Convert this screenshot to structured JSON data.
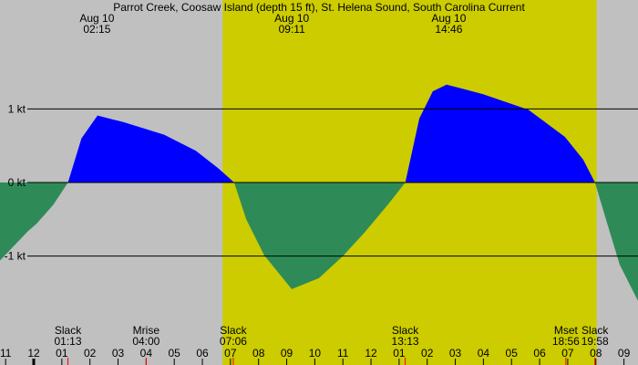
{
  "chart_data": {
    "type": "area",
    "title": "Parrot Creek, Coosaw Island (depth 15 ft), St. Helena Sound, South Carolina Current",
    "x": [
      -1.2,
      -0.2,
      0.1,
      0.7,
      1.22,
      1.7,
      2.27,
      3.2,
      4.64,
      5.77,
      6.58,
      7.13,
      7.56,
      8.2,
      9.18,
      10.15,
      11.0,
      11.77,
      12.6,
      13.22,
      13.72,
      14.2,
      14.69,
      15.99,
      17.6,
      18.9,
      19.55,
      19.97,
      20.36,
      20.85,
      21.5
    ],
    "values": [
      -1.06,
      -0.66,
      -0.56,
      -0.3,
      0,
      0.6,
      0.91,
      0.82,
      0.65,
      0.43,
      0.19,
      0,
      -0.5,
      -0.99,
      -1.45,
      -1.3,
      -1.0,
      -0.68,
      -0.3,
      0,
      0.87,
      1.24,
      1.33,
      1.2,
      0.99,
      0.62,
      0.31,
      0,
      -0.5,
      -1.12,
      -1.61
    ],
    "positive_color": "#0000ff",
    "negative_color": "#2e8b57",
    "background_color": "#c0c0c0",
    "daylight_color": "#cccc00",
    "daylight": [
      6.72,
      20.03
    ],
    "xlim": [
      -1.2,
      21.5
    ],
    "ylim": [
      -2.48,
      2.48
    ],
    "yticks": [
      {
        "value": 1,
        "label": "1 kt"
      },
      {
        "value": 0,
        "label": "0 kt"
      },
      {
        "value": -1,
        "label": "-1 kt"
      }
    ],
    "xticks": [
      {
        "value": -1,
        "label": "11"
      },
      {
        "value": 0,
        "label": "12"
      },
      {
        "value": 1,
        "label": "01"
      },
      {
        "value": 2,
        "label": "02"
      },
      {
        "value": 3,
        "label": "03"
      },
      {
        "value": 4,
        "label": "04"
      },
      {
        "value": 5,
        "label": "05"
      },
      {
        "value": 6,
        "label": "06"
      },
      {
        "value": 7,
        "label": "07"
      },
      {
        "value": 8,
        "label": "08"
      },
      {
        "value": 9,
        "label": "09"
      },
      {
        "value": 10,
        "label": "10"
      },
      {
        "value": 11,
        "label": "11"
      },
      {
        "value": 12,
        "label": "12"
      },
      {
        "value": 13,
        "label": "01"
      },
      {
        "value": 14,
        "label": "02"
      },
      {
        "value": 15,
        "label": "03"
      },
      {
        "value": 16,
        "label": "04"
      },
      {
        "value": 17,
        "label": "05"
      },
      {
        "value": 18,
        "label": "06"
      },
      {
        "value": 19,
        "label": "07"
      },
      {
        "value": 20,
        "label": "08"
      },
      {
        "value": 21,
        "label": "09"
      }
    ],
    "peaks": [
      {
        "date": "Aug 10",
        "time": "02:15"
      },
      {
        "date": "Aug 10",
        "time": "09:11"
      },
      {
        "date": "Aug 10",
        "time": "14:46"
      }
    ],
    "events": [
      {
        "name": "Slack",
        "time": "01:13"
      },
      {
        "name": "Mrise",
        "time": "04:00"
      },
      {
        "name": "Slack",
        "time": "07:06"
      },
      {
        "name": "Slack",
        "time": "13:13"
      },
      {
        "name": "Mset",
        "time": "18:56"
      },
      {
        "name": "Slack",
        "time": "19:58"
      }
    ]
  }
}
